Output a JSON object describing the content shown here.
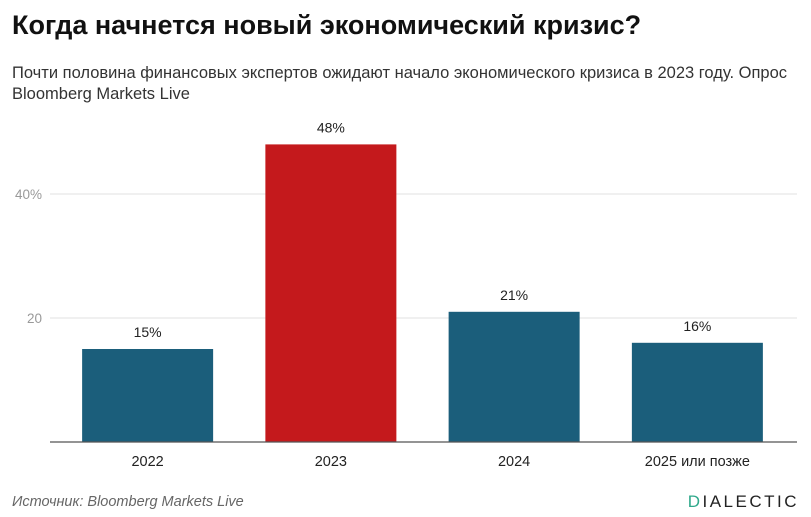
{
  "title": "Когда начнется новый экономический кризис?",
  "subtitle": "Почти половина финансовых экспертов ожидают начало экономического кризиса в 2023 году. Опрос Bloomberg Markets Live",
  "source": "Источник: Bloomberg Markets Live",
  "logo": {
    "first": "D",
    "rest": "IALECTIC",
    "accent_color": "#2ea88a"
  },
  "chart_data": {
    "type": "bar",
    "categories": [
      "2022",
      "2023",
      "2024",
      "2025 или позже"
    ],
    "values": [
      15,
      48,
      21,
      16
    ],
    "value_labels": [
      "15%",
      "48%",
      "21%",
      "16%"
    ],
    "colors": [
      "#1b5e7b",
      "#c4191c",
      "#1b5e7b",
      "#1b5e7b"
    ],
    "yticks": [
      20,
      40
    ],
    "ytick_labels": [
      "20",
      "40%"
    ],
    "ylim": [
      0,
      50
    ],
    "grid": true,
    "xlabel": "",
    "ylabel": ""
  }
}
